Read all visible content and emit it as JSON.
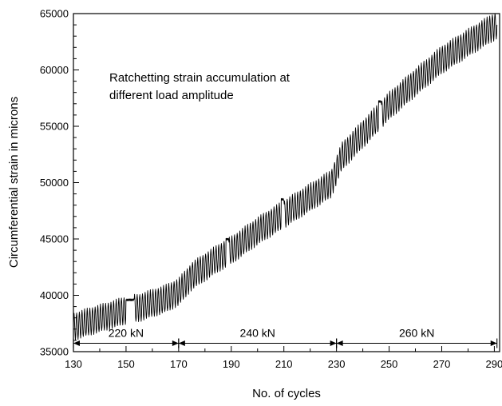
{
  "chart_data": {
    "type": "line",
    "title": "",
    "xlabel": "No. of cycles",
    "ylabel": "Circumferential strain in microns",
    "xlim": [
      130,
      292
    ],
    "ylim": [
      35000,
      65000
    ],
    "x_ticks": [
      130,
      150,
      170,
      190,
      210,
      230,
      250,
      270,
      290
    ],
    "y_ticks": [
      35000,
      40000,
      45000,
      50000,
      55000,
      60000,
      65000
    ],
    "grid": false,
    "line_color": "#000000",
    "annotation_lines": [
      "Ratchetting strain accumulation at",
      "different load amplitude"
    ],
    "load_bands": [
      {
        "label": "220 kN",
        "x_start": 130,
        "x_end": 170
      },
      {
        "label": "240 kN",
        "x_start": 170,
        "x_end": 230
      },
      {
        "label": "260 kN",
        "x_start": 230,
        "x_end": 291
      }
    ],
    "series": [
      {
        "cycles_per_unit": 1,
        "oscillation_amplitude": 1200,
        "mean_trend": {
          "x": [
            130,
            135,
            145,
            150,
            155,
            165,
            170,
            175,
            185,
            190,
            200,
            210,
            220,
            228,
            232,
            240,
            250,
            260,
            270,
            280,
            291
          ],
          "y": [
            37200,
            37600,
            38300,
            38700,
            38900,
            39700,
            40300,
            41700,
            43300,
            44000,
            45700,
            47200,
            48700,
            49900,
            52300,
            54300,
            56800,
            58900,
            60900,
            62400,
            64000
          ]
        },
        "holds": [
          {
            "x_start": 150,
            "x_end": 153,
            "level": 39600
          },
          {
            "x_start": 188,
            "x_end": 189,
            "level": 45000
          },
          {
            "x_start": 209,
            "x_end": 210,
            "level": 48500
          },
          {
            "x_start": 246,
            "x_end": 247,
            "level": 57200
          }
        ]
      }
    ]
  }
}
